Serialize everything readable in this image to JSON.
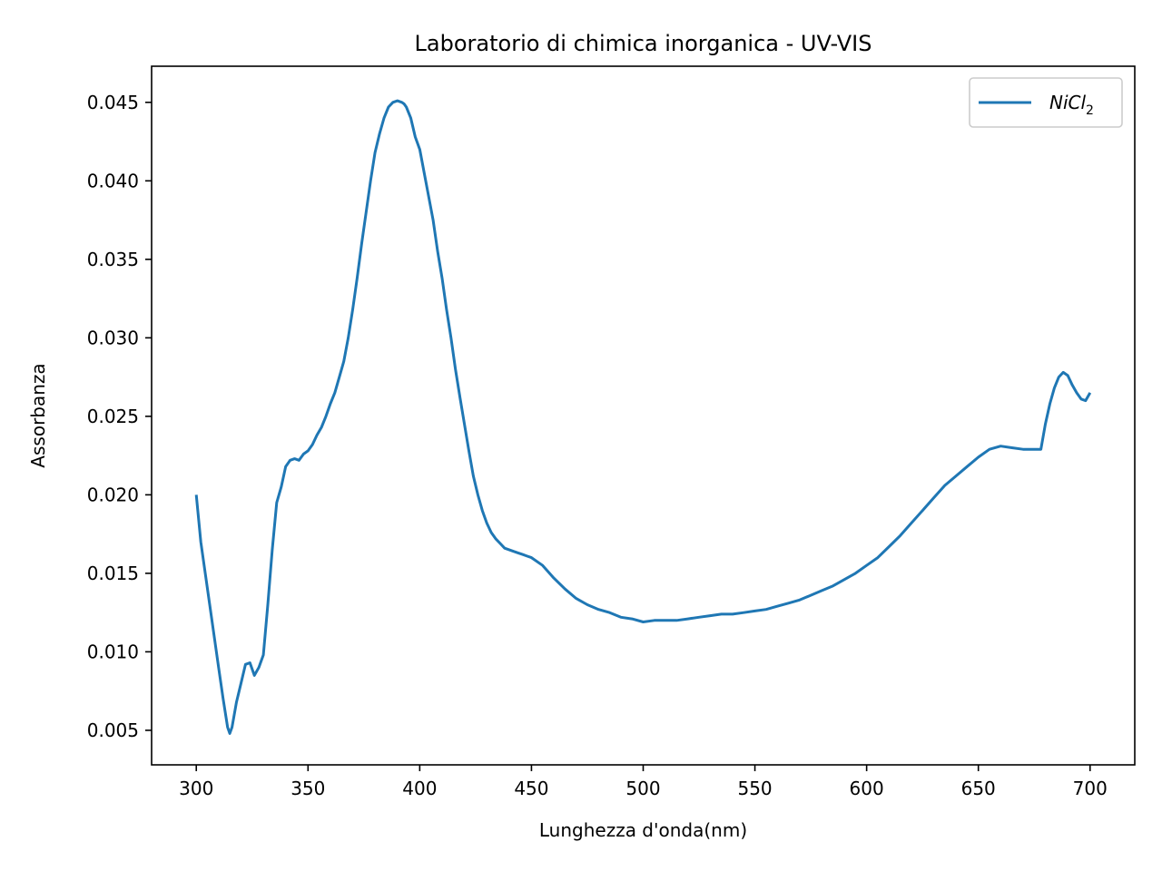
{
  "chart_data": {
    "type": "line",
    "title": "Laboratorio di chimica inorganica - UV-VIS",
    "xlabel": "Lunghezza d'onda(nm)",
    "ylabel": "Assorbanza",
    "xlim": [
      280,
      720
    ],
    "ylim": [
      0.0028,
      0.0473
    ],
    "grid": false,
    "legend_position": "top-right",
    "x_ticks": [
      300,
      350,
      400,
      450,
      500,
      550,
      600,
      650,
      700
    ],
    "x_tick_labels": [
      "300",
      "350",
      "400",
      "450",
      "500",
      "550",
      "600",
      "650",
      "700"
    ],
    "y_ticks": [
      0.005,
      0.01,
      0.015,
      0.02,
      0.025,
      0.03,
      0.035,
      0.04,
      0.045
    ],
    "y_tick_labels": [
      "0.005",
      "0.010",
      "0.015",
      "0.020",
      "0.025",
      "0.030",
      "0.035",
      "0.040",
      "0.045"
    ],
    "series": [
      {
        "name": "NiCl",
        "name_subscript": "2",
        "color": "#1f77b4",
        "x": [
          300,
          302,
          304,
          306,
          308,
          310,
          312,
          314,
          315,
          316,
          318,
          320,
          322,
          324,
          326,
          328,
          330,
          332,
          334,
          336,
          338,
          340,
          342,
          344,
          346,
          348,
          350,
          352,
          354,
          356,
          358,
          360,
          362,
          364,
          366,
          368,
          370,
          372,
          374,
          376,
          378,
          380,
          382,
          384,
          386,
          388,
          390,
          392,
          393,
          394,
          396,
          398,
          400,
          402,
          404,
          406,
          408,
          410,
          412,
          414,
          416,
          418,
          420,
          422,
          424,
          426,
          428,
          430,
          432,
          434,
          436,
          438,
          440,
          442,
          444,
          446,
          448,
          450,
          455,
          460,
          465,
          470,
          475,
          480,
          485,
          490,
          495,
          500,
          505,
          510,
          515,
          520,
          525,
          530,
          535,
          540,
          545,
          550,
          555,
          560,
          565,
          570,
          575,
          580,
          585,
          590,
          595,
          600,
          605,
          610,
          615,
          620,
          625,
          630,
          635,
          640,
          645,
          650,
          655,
          660,
          665,
          670,
          675,
          678,
          680,
          682,
          684,
          686,
          688,
          690,
          692,
          694,
          696,
          698,
          700
        ],
        "y": [
          0.02,
          0.017,
          0.015,
          0.013,
          0.011,
          0.009,
          0.007,
          0.0052,
          0.0048,
          0.0052,
          0.0068,
          0.008,
          0.0092,
          0.0093,
          0.0085,
          0.009,
          0.0098,
          0.013,
          0.0165,
          0.0195,
          0.0205,
          0.0218,
          0.0222,
          0.0223,
          0.0222,
          0.0226,
          0.0228,
          0.0232,
          0.0238,
          0.0243,
          0.025,
          0.0258,
          0.0265,
          0.0275,
          0.0285,
          0.03,
          0.0318,
          0.0338,
          0.036,
          0.038,
          0.04,
          0.0418,
          0.043,
          0.044,
          0.0447,
          0.045,
          0.0451,
          0.045,
          0.0449,
          0.0447,
          0.044,
          0.0428,
          0.042,
          0.0405,
          0.039,
          0.0375,
          0.0355,
          0.0338,
          0.0318,
          0.03,
          0.028,
          0.0262,
          0.0245,
          0.0228,
          0.0212,
          0.02,
          0.019,
          0.0182,
          0.0176,
          0.0172,
          0.0169,
          0.0166,
          0.0165,
          0.0164,
          0.0163,
          0.0162,
          0.0161,
          0.016,
          0.0155,
          0.0147,
          0.014,
          0.0134,
          0.013,
          0.0127,
          0.0125,
          0.0122,
          0.0121,
          0.0119,
          0.012,
          0.012,
          0.012,
          0.0121,
          0.0122,
          0.0123,
          0.0124,
          0.0124,
          0.0125,
          0.0126,
          0.0127,
          0.0129,
          0.0131,
          0.0133,
          0.0136,
          0.0139,
          0.0142,
          0.0146,
          0.015,
          0.0155,
          0.016,
          0.0167,
          0.0174,
          0.0182,
          0.019,
          0.0198,
          0.0206,
          0.0212,
          0.0218,
          0.0224,
          0.0229,
          0.0231,
          0.023,
          0.0229,
          0.0229,
          0.0229,
          0.0245,
          0.0258,
          0.0268,
          0.0275,
          0.0278,
          0.0276,
          0.027,
          0.0265,
          0.0261,
          0.026,
          0.0265
        ]
      }
    ]
  }
}
